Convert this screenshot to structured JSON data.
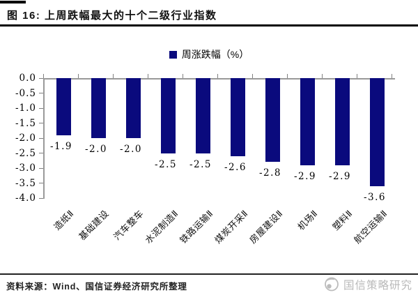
{
  "figure": {
    "title": "图 16: 上周跌幅最大的十个二级行业指数"
  },
  "legend": {
    "label": "周涨跌幅（%）"
  },
  "footer": {
    "source": "资料来源：Wind、国信证券经济研究所整理",
    "watermark": "国信策略研究"
  },
  "colors": {
    "bar": "#0a0a7d",
    "axis": "#999999",
    "tick": "#808080",
    "text": "#000000",
    "watermark": "#b9b9b9",
    "rule": "#000000"
  },
  "chart_data": {
    "type": "bar",
    "title": "上周跌幅最大的十个二级行业指数",
    "legend": [
      "周涨跌幅（%）"
    ],
    "legend_position": "top-center",
    "categories": [
      "造纸Ⅱ",
      "基础建设",
      "汽车整车",
      "水泥制造Ⅱ",
      "铁路运输Ⅱ",
      "煤炭开采Ⅱ",
      "房屋建设Ⅱ",
      "机场Ⅱ",
      "塑料Ⅱ",
      "航空运输Ⅱ"
    ],
    "values": [
      -1.9,
      -2.0,
      -2.0,
      -2.5,
      -2.5,
      -2.6,
      -2.8,
      -2.9,
      -2.9,
      -3.6
    ],
    "value_labels": [
      "-1.9",
      "-2.0",
      "-2.0",
      "-2.5",
      "-2.5",
      "-2.6",
      "-2.8",
      "-2.9",
      "-2.9",
      "-3.6"
    ],
    "xlabel": "",
    "ylabel": "",
    "ylim": [
      -4.0,
      0.0
    ],
    "yticks": [
      0.0,
      -0.5,
      -1.0,
      -1.5,
      -2.0,
      -2.5,
      -3.0,
      -3.5,
      -4.0
    ],
    "grid": false,
    "bar_color": "#0a0a7d",
    "value_labels_shown": true,
    "category_label_rotation_deg": -45
  }
}
